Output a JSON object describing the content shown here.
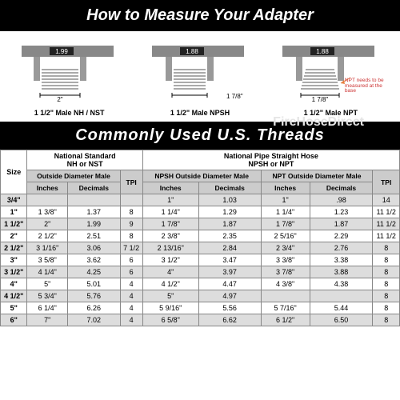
{
  "banner1": "How to Measure Your Adapter",
  "banner2": "Commonly Used U.S. Threads",
  "watermark": "FireHoseDirect",
  "calipers": {
    "c1": {
      "reading": "1.99",
      "width_label": "2\"",
      "caption": "1 1/2\" Male NH / NST"
    },
    "c2": {
      "reading": "1.88",
      "width_label": "1 7/8\"",
      "caption": "1 1/2\" Male NPSH"
    },
    "c3": {
      "reading": "1.88",
      "width_label": "1 7/8\"",
      "caption": "1 1/2\" Male NPT",
      "note": "NPT needs to be measured at the base"
    }
  },
  "table": {
    "group1": "National Standard\nNH or NST",
    "group2": "National Pipe Straight Hose\nNPSH or NPT",
    "sub_odm": "Outside Diameter Male",
    "sub_tpi": "TPI",
    "sub_npsh": "NPSH Outside Diameter Male",
    "sub_npt": "NPT Outside Diameter Male",
    "col_size": "Size",
    "col_in": "Inches",
    "col_dec": "Decimals",
    "rows": [
      {
        "size": "3/4\"",
        "nh_in": "",
        "nh_dec": "",
        "nh_tpi": "",
        "npsh_in": "1\"",
        "npsh_dec": "1.03",
        "npt_in": "1\"",
        "npt_dec": ".98",
        "tpi": "14"
      },
      {
        "size": "1\"",
        "nh_in": "1 3/8\"",
        "nh_dec": "1.37",
        "nh_tpi": "8",
        "npsh_in": "1 1/4\"",
        "npsh_dec": "1.29",
        "npt_in": "1 1/4\"",
        "npt_dec": "1.23",
        "tpi": "11 1/2"
      },
      {
        "size": "1 1/2\"",
        "nh_in": "2\"",
        "nh_dec": "1.99",
        "nh_tpi": "9",
        "npsh_in": "1 7/8\"",
        "npsh_dec": "1.87",
        "npt_in": "1 7/8\"",
        "npt_dec": "1.87",
        "tpi": "11 1/2"
      },
      {
        "size": "2\"",
        "nh_in": "2 1/2\"",
        "nh_dec": "2.51",
        "nh_tpi": "8",
        "npsh_in": "2 3/8\"",
        "npsh_dec": "2.35",
        "npt_in": "2 5/16\"",
        "npt_dec": "2.29",
        "tpi": "11 1/2"
      },
      {
        "size": "2 1/2\"",
        "nh_in": "3 1/16\"",
        "nh_dec": "3.06",
        "nh_tpi": "7 1/2",
        "npsh_in": "2 13/16\"",
        "npsh_dec": "2.84",
        "npt_in": "2 3/4\"",
        "npt_dec": "2.76",
        "tpi": "8"
      },
      {
        "size": "3\"",
        "nh_in": "3 5/8\"",
        "nh_dec": "3.62",
        "nh_tpi": "6",
        "npsh_in": "3 1/2\"",
        "npsh_dec": "3.47",
        "npt_in": "3 3/8\"",
        "npt_dec": "3.38",
        "tpi": "8"
      },
      {
        "size": "3 1/2\"",
        "nh_in": "4 1/4\"",
        "nh_dec": "4.25",
        "nh_tpi": "6",
        "npsh_in": "4\"",
        "npsh_dec": "3.97",
        "npt_in": "3 7/8\"",
        "npt_dec": "3.88",
        "tpi": "8"
      },
      {
        "size": "4\"",
        "nh_in": "5\"",
        "nh_dec": "5.01",
        "nh_tpi": "4",
        "npsh_in": "4 1/2\"",
        "npsh_dec": "4.47",
        "npt_in": "4 3/8\"",
        "npt_dec": "4.38",
        "tpi": "8"
      },
      {
        "size": "4 1/2\"",
        "nh_in": "5 3/4\"",
        "nh_dec": "5.76",
        "nh_tpi": "4",
        "npsh_in": "5\"",
        "npsh_dec": "4.97",
        "npt_in": "",
        "npt_dec": "",
        "tpi": "8"
      },
      {
        "size": "5\"",
        "nh_in": "6 1/4\"",
        "nh_dec": "6.26",
        "nh_tpi": "4",
        "npsh_in": "5 9/16\"",
        "npsh_dec": "5.56",
        "npt_in": "5 7/16\"",
        "npt_dec": "5.44",
        "tpi": "8"
      },
      {
        "size": "6\"",
        "nh_in": "7\"",
        "nh_dec": "7.02",
        "nh_tpi": "4",
        "npsh_in": "6 5/8\"",
        "npsh_dec": "6.62",
        "npt_in": "6 1/2\"",
        "npt_dec": "6.50",
        "tpi": "8"
      }
    ]
  },
  "colors": {
    "banner_bg": "#000000",
    "shade": "#dddddd",
    "sub_bg": "#cccccc"
  }
}
